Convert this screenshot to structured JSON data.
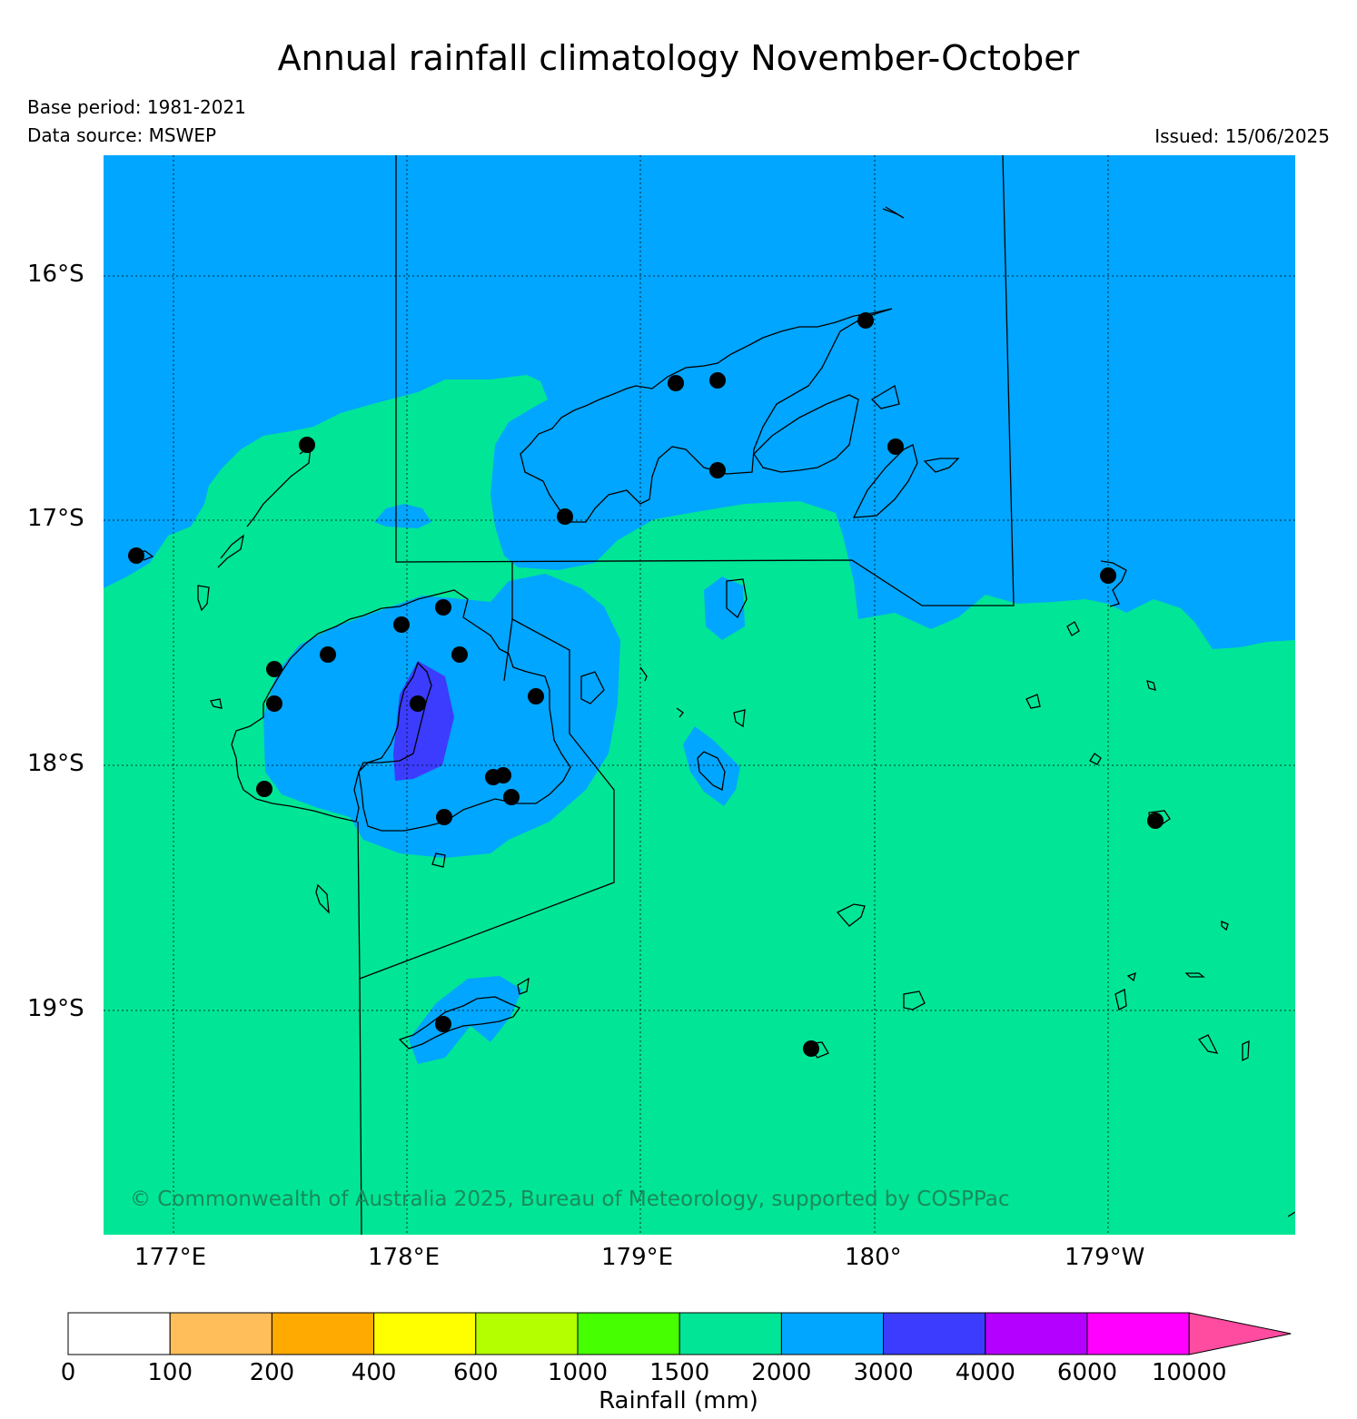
{
  "header": {
    "title": "Annual rainfall climatology November-October",
    "base_period": "Base period: 1981-2021",
    "data_source": "Data source: MSWEP",
    "issued": "Issued: 15/06/2025"
  },
  "map": {
    "lat_labels": [
      "16°S",
      "17°S",
      "18°S",
      "19°S"
    ],
    "lon_labels": [
      "177°E",
      "178°E",
      "179°E",
      "180°",
      "179°W"
    ],
    "copyright": "© Commonwealth of Australia 2025, Bureau of Meteorology, supported by COSPPac",
    "colors": {
      "ocean_1500_2000": "#00e696",
      "band_2000_3000": "#00a6ff",
      "band_3000_4000": "#3c3cff",
      "station": "#000000"
    }
  },
  "colorbar": {
    "title": "Rainfall (mm)",
    "labels": [
      "0",
      "100",
      "200",
      "400",
      "600",
      "1000",
      "1500",
      "2000",
      "3000",
      "4000",
      "6000",
      "10000"
    ],
    "colors": [
      "#ffffff",
      "#ffbe5a",
      "#ffaa00",
      "#ffff00",
      "#b4ff00",
      "#46ff00",
      "#00e696",
      "#00a6ff",
      "#3c3cff",
      "#b400ff",
      "#ff00ff"
    ],
    "extend_color": "#ff4ba0"
  }
}
